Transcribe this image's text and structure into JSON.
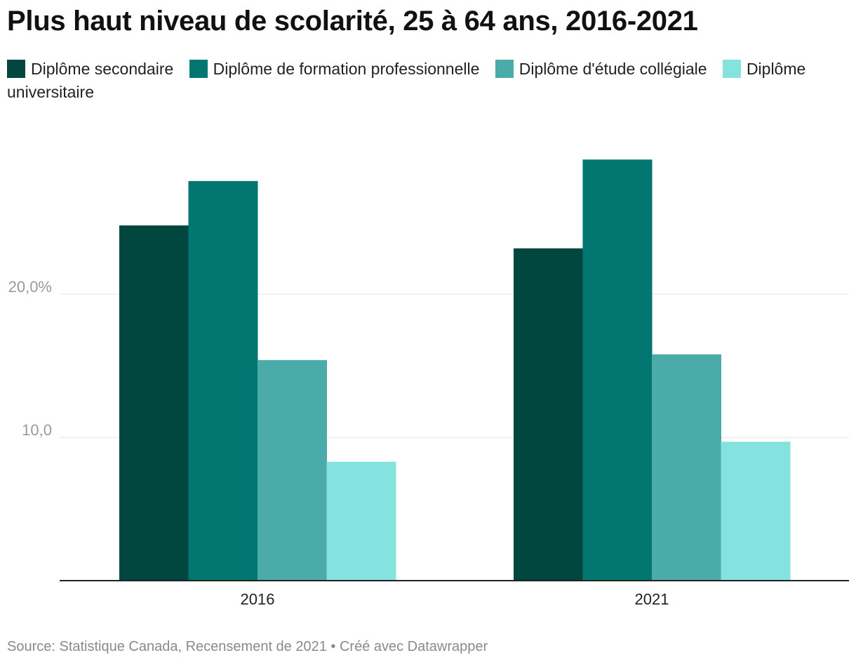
{
  "title": "Plus haut niveau de scolarité, 25 à 64 ans, 2016-2021",
  "source": "Source: Statistique Canada, Recensement de 2021 • Créé avec Datawrapper",
  "chart_data": {
    "type": "bar",
    "title": "Plus haut niveau de scolarité, 25 à 64 ans, 2016-2021",
    "xlabel": "",
    "ylabel": "",
    "categories": [
      "2016",
      "2021"
    ],
    "series": [
      {
        "name": "Diplôme secondaire",
        "color": "#01463f",
        "values": [
          24.8,
          23.2
        ]
      },
      {
        "name": "Diplôme de formation professionnelle",
        "color": "#027670",
        "values": [
          27.9,
          29.4
        ]
      },
      {
        "name": "Diplôme d'étude collégiale",
        "color": "#4aaba9",
        "values": [
          15.4,
          15.8
        ]
      },
      {
        "name": "Diplôme universitaire",
        "color": "#84e2df",
        "values": [
          8.3,
          9.7
        ]
      }
    ],
    "yticks": [
      {
        "value": 10,
        "label": "10,0"
      },
      {
        "value": 20,
        "label": "20,0%"
      }
    ],
    "ylim": [
      0,
      30
    ],
    "grid": true,
    "legend_position": "top"
  }
}
